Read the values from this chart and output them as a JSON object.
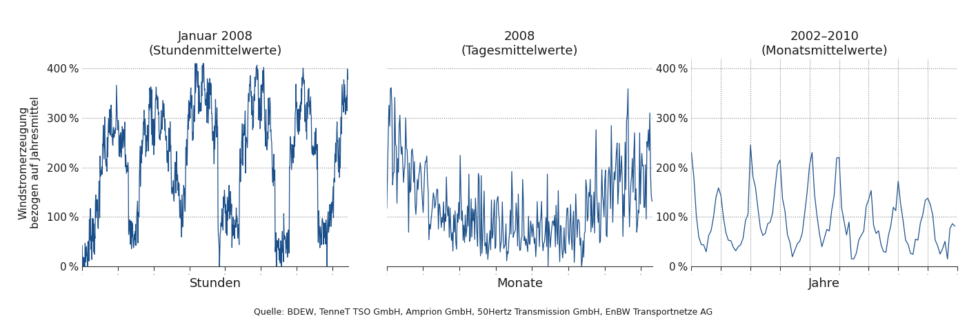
{
  "title1": "Januar 2008",
  "subtitle1": "(Stundenmittelwerte)",
  "title2": "2008",
  "subtitle2": "(Tagesmittelwerte)",
  "title3": "2002–2010",
  "subtitle3": "(Monatsmittelwerte)",
  "xlabel1": "Stunden",
  "xlabel2": "Monate",
  "xlabel3": "Jahre",
  "ylabel": "Windstromerzeugung\nbezogen auf Jahresmittel",
  "yticks": [
    0,
    100,
    200,
    300,
    400
  ],
  "ytick_labels": [
    "0 %",
    "100 %",
    "200 %",
    "300 %",
    "400 %"
  ],
  "ylim": [
    0,
    420
  ],
  "line_color": "#1b4f8a",
  "source_text": "Quelle: BDEW, TenneT TSO GmbH, Amprion GmbH, 50Hertz Transmission GmbH, EnBW Transportnetze AG",
  "text_color": "#1a1a1a",
  "grid_color": "#777777",
  "bg_color": "#ffffff",
  "n_hours": 744,
  "n_days": 366,
  "n_months": 108
}
